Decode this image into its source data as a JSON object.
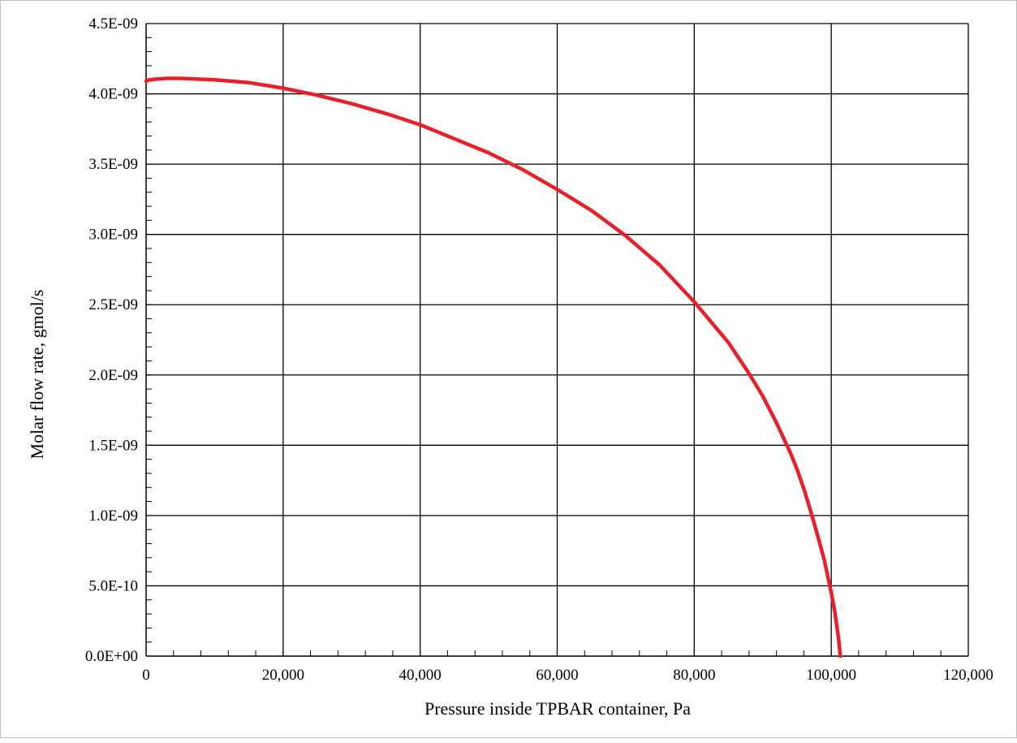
{
  "chart_data": {
    "type": "line",
    "title": "",
    "xlabel": "Pressure inside TPBAR container, Pa",
    "ylabel": "Molar flow rate, gmol/s",
    "xlim": [
      0,
      120000
    ],
    "ylim": [
      0,
      4.5e-09
    ],
    "x_ticks": [
      0,
      20000,
      40000,
      60000,
      80000,
      100000,
      120000
    ],
    "x_tick_labels": [
      "0",
      "20,000",
      "40,000",
      "60,000",
      "80,000",
      "100,000",
      "120,000"
    ],
    "y_ticks": [
      0,
      5e-10,
      1e-09,
      1.5e-09,
      2e-09,
      2.5e-09,
      3e-09,
      3.5e-09,
      4e-09,
      4.5e-09
    ],
    "y_tick_labels": [
      "0.0E+00",
      "5.0E-10",
      "1.0E-09",
      "1.5E-09",
      "2.0E-09",
      "2.5E-09",
      "3.0E-09",
      "3.5E-09",
      "4.0E-09",
      "4.5E-09"
    ],
    "grid": true,
    "legend": "none",
    "series": [
      {
        "color": "#e8202a",
        "x": [
          0,
          500,
          1500,
          3000,
          5000,
          10000,
          15000,
          20000,
          25000,
          30000,
          35000,
          40000,
          45000,
          50000,
          55000,
          60000,
          65000,
          70000,
          75000,
          80000,
          85000,
          88000,
          90000,
          92000,
          94000,
          95000,
          96000,
          97000,
          98000,
          99000,
          100000,
          100500,
          101000,
          101325
        ],
        "y": [
          4.09e-09,
          4.1e-09,
          4.105e-09,
          4.11e-09,
          4.11e-09,
          4.1e-09,
          4.08e-09,
          4.04e-09,
          3.99e-09,
          3.93e-09,
          3.86e-09,
          3.78e-09,
          3.68e-09,
          3.58e-09,
          3.46e-09,
          3.32e-09,
          3.17e-09,
          2.99e-09,
          2.78e-09,
          2.52e-09,
          2.23e-09,
          2.01e-09,
          1.85e-09,
          1.66e-09,
          1.45e-09,
          1.33e-09,
          1.19e-09,
          1.03e-09,
          8.6e-10,
          6.8e-10,
          4.5e-10,
          3.2e-10,
          1.5e-10,
          0
        ]
      }
    ]
  }
}
